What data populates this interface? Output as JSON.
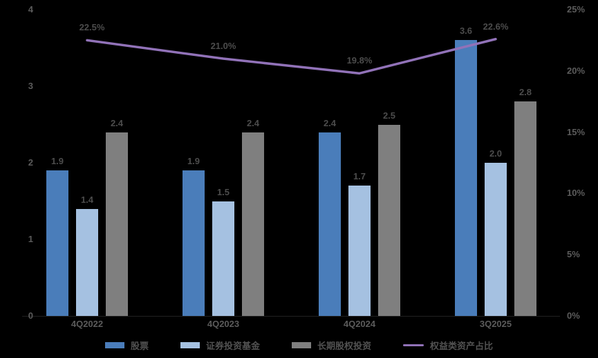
{
  "chart_data": {
    "type": "bar",
    "subtype": "grouped-bar-with-line-combo",
    "title": "",
    "categories": [
      "4Q2022",
      "4Q2023",
      "4Q2024",
      "3Q2025"
    ],
    "series": [
      {
        "name": "股票",
        "type": "bar",
        "axis": "left",
        "color": "#4A7DBA",
        "values": [
          1.9,
          1.9,
          2.4,
          3.6
        ],
        "value_labels": [
          "1.9",
          "1.9",
          "2.4",
          "3.6"
        ]
      },
      {
        "name": "证券投资基金",
        "type": "bar",
        "axis": "left",
        "color": "#A5C1E1",
        "values": [
          1.4,
          1.5,
          1.7,
          2.0
        ],
        "value_labels": [
          "1.4",
          "1.5",
          "1.7",
          "2.0"
        ]
      },
      {
        "name": "长期股权投资",
        "type": "bar",
        "axis": "left",
        "color": "#7F7F7F",
        "values": [
          2.4,
          2.4,
          2.5,
          2.8
        ],
        "value_labels": [
          "2.4",
          "2.4",
          "2.5",
          "2.8"
        ]
      },
      {
        "name": "权益类资产占比",
        "type": "line",
        "axis": "right",
        "color": "#9172B8",
        "values": [
          22.5,
          21.0,
          19.8,
          22.6
        ],
        "value_labels": [
          "22.5%",
          "21.0%",
          "19.8%",
          "22.6%"
        ]
      }
    ],
    "left_axis": {
      "min": 0,
      "max": 4,
      "tick_labels": [
        "0",
        "1",
        "2",
        "3",
        "4"
      ]
    },
    "right_axis": {
      "min": 0,
      "max": 25,
      "tick_labels": [
        "0%",
        "5%",
        "10%",
        "15%",
        "20%",
        "25%"
      ]
    },
    "legend": {
      "position": "bottom",
      "entries": [
        "股票",
        "证券投资基金",
        "长期股权投资",
        "权益类资产占比"
      ]
    },
    "grid": false,
    "background_color": "#000000",
    "colors": {
      "bar_dark_blue": "#4A7DBA",
      "bar_light_blue": "#A5C1E1",
      "bar_gray": "#7F7F7F",
      "line_purple": "#9172B8",
      "data_label": "#4C4C4C",
      "axis_label": "#5B5B5B"
    }
  }
}
